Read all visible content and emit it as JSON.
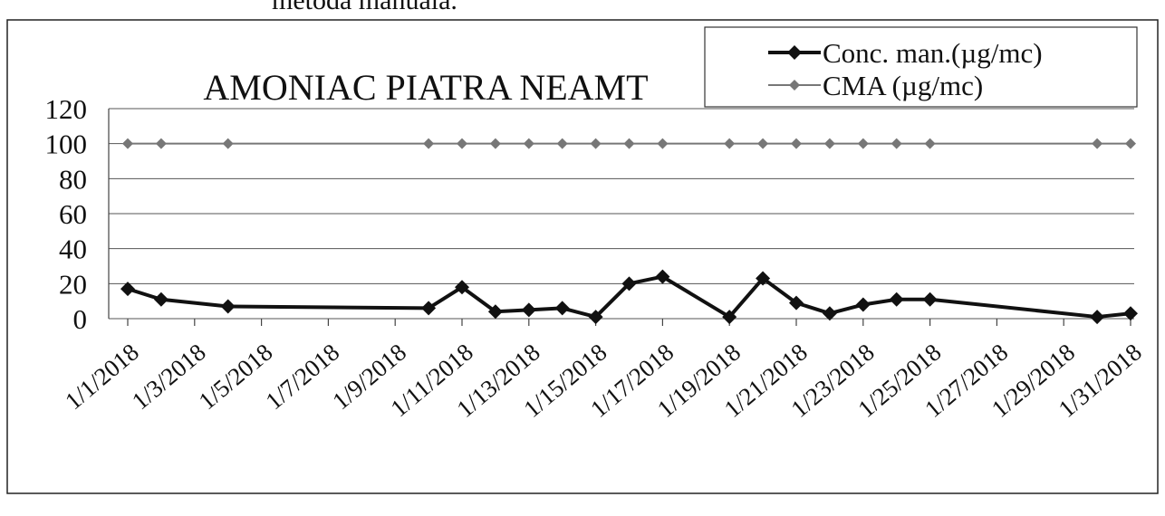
{
  "caption": "metoda manuala.",
  "chart_data": {
    "type": "line",
    "title": "AMONIAC PIATRA NEAMT",
    "x": [
      "1/1/2018",
      "1/2/2018",
      "1/4/2018",
      "1/10/2018",
      "1/11/2018",
      "1/12/2018",
      "1/13/2018",
      "1/14/2018",
      "1/15/2018",
      "1/16/2018",
      "1/17/2018",
      "1/19/2018",
      "1/20/2018",
      "1/21/2018",
      "1/22/2018",
      "1/23/2018",
      "1/24/2018",
      "1/25/2018",
      "1/30/2018",
      "1/31/2018"
    ],
    "series": [
      {
        "name": "Conc. man.(µg/mc)",
        "color": "#111111",
        "values": [
          17,
          11,
          7,
          6,
          18,
          4,
          5,
          6,
          1,
          20,
          24,
          1,
          23,
          9,
          3,
          8,
          11,
          11,
          1,
          3
        ]
      },
      {
        "name": "CMA (µg/mc)",
        "color": "#777777",
        "values": [
          100,
          100,
          100,
          100,
          100,
          100,
          100,
          100,
          100,
          100,
          100,
          100,
          100,
          100,
          100,
          100,
          100,
          100,
          100,
          100
        ]
      }
    ],
    "xlim": [
      "1/1/2018",
      "1/31/2018"
    ],
    "xticks": [
      "1/1/2018",
      "1/3/2018",
      "1/5/2018",
      "1/7/2018",
      "1/9/2018",
      "1/11/2018",
      "1/13/2018",
      "1/15/2018",
      "1/17/2018",
      "1/19/2018",
      "1/21/2018",
      "1/23/2018",
      "1/25/2018",
      "1/27/2018",
      "1/29/2018",
      "1/31/2018"
    ],
    "ylim": [
      0,
      120
    ],
    "yticks": [
      0,
      20,
      40,
      60,
      80,
      100,
      120
    ],
    "grid": true,
    "legend": "top-right"
  }
}
